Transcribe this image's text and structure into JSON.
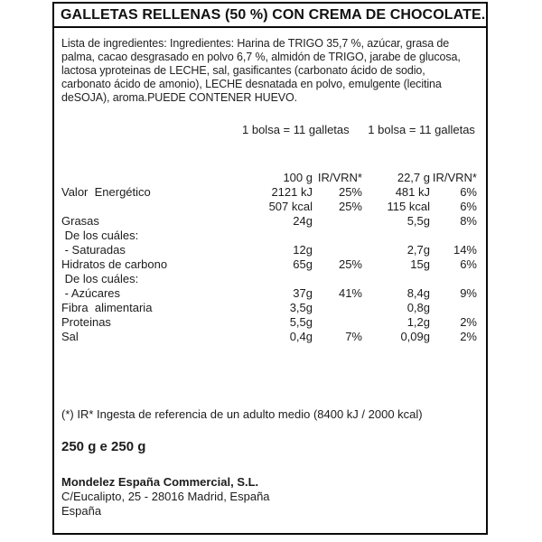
{
  "label": {
    "title": "GALLETAS RELLENAS (50 %) CON CREMA DE CHOCOLATE.",
    "ingredients": "Lista de ingredientes: Ingredientes: Harina de TRIGO 35,7 %, azúcar, grasa de\npalma, cacao desgrasado en polvo 6,7 %, almidón de TRIGO, jarabe de glucosa,\nlactosa yproteinas de LECHE, sal, gasificantes (carbonato ácido de sodio,\ncarbonato ácido de amonio), LECHE desnatada en polvo, emulgente (lecitina\ndeSOJA), aroma.PUEDE CONTENER HUEVO.",
    "serving_left": "1 bolsa = 11 galletas",
    "serving_right": "1 bolsa = 11 galletas",
    "footnote": "(*) IR* Ingesta de referencia de un adulto medio (8400 kJ / 2000 kcal)",
    "net_weight": "250 g e 250 g",
    "company": "Mondelez España Commercial, S.L.",
    "address": "C/Eucalipto, 25  - 28016 Madrid,  España",
    "country": "España"
  },
  "nutrition": {
    "columns": [
      "100 g",
      "IR/VRN*",
      "22,7 g",
      "IR/VRN*"
    ],
    "rows": [
      {
        "label": "Valor  Energético",
        "per100": "2121 kJ",
        "ir100": "25%",
        "per227": "481 kJ",
        "ir227": "6%"
      },
      {
        "label": "",
        "per100": "507 kcal",
        "ir100": "25%",
        "per227": "115 kcal",
        "ir227": "6%"
      },
      {
        "label": "Grasas",
        "per100": "24g",
        "ir100": "",
        "per227": "5,5g",
        "ir227": "8%"
      },
      {
        "label": " De los cuáles:",
        "per100": "",
        "ir100": "",
        "per227": "",
        "ir227": ""
      },
      {
        "label": " - Saturadas",
        "per100": "12g",
        "ir100": "",
        "per227": "2,7g",
        "ir227": "14%"
      },
      {
        "label": "Hidratos de carbono",
        "per100": "65g",
        "ir100": "25%",
        "per227": "15g",
        "ir227": "6%"
      },
      {
        "label": " De los cuáles:",
        "per100": "",
        "ir100": "",
        "per227": "",
        "ir227": ""
      },
      {
        "label": " - Azúcares",
        "per100": "37g",
        "ir100": "41%",
        "per227": "8,4g",
        "ir227": "9%"
      },
      {
        "label": "Fibra  alimentaria",
        "per100": "3,5g",
        "ir100": "",
        "per227": "0,8g",
        "ir227": ""
      },
      {
        "label": "Proteinas",
        "per100": "5,5g",
        "ir100": "",
        "per227": "1,2g",
        "ir227": "2%"
      },
      {
        "label": "Sal",
        "per100": "0,4g",
        "ir100": "7%",
        "per227": "0,09g",
        "ir227": "2%"
      }
    ]
  }
}
